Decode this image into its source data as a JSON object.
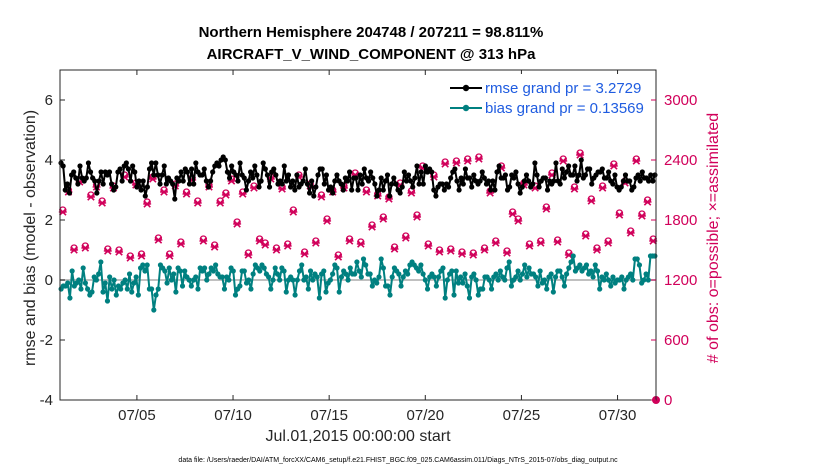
{
  "chart_data": {
    "type": "line",
    "title_line1": "Northern Hemisphere 204748 / 207211 = 98.811%",
    "title_line2": "AIRCRAFT_V_WIND_COMPONENT @ 313 hPa",
    "ylabel_left": "rmse and bias (model - observation)",
    "ylabel_right": "# of obs: o=possible; ×=assimilated",
    "xlabel": "Jul.01,2015 00:00:00 start",
    "footer": "data file: /Users/raeder/DAI/ATM_forcXX/CAM6_setup/f.e21.FHIST_BGC.f09_025.CAM6assim.011/Diags_NTrS_2015-07/obs_diag_output.nc",
    "xlim": [
      1.0,
      32.0
    ],
    "ylim_left": [
      -4,
      7
    ],
    "ylim_right": [
      0,
      3300
    ],
    "xticks": [
      5,
      10,
      15,
      20,
      25,
      30
    ],
    "xtick_labels": [
      "07/05",
      "07/10",
      "07/15",
      "07/20",
      "07/25",
      "07/30"
    ],
    "yticks_left": [
      -4,
      -2,
      0,
      2,
      4,
      6
    ],
    "yticks_right": [
      0,
      600,
      1200,
      1800,
      2400,
      3000
    ],
    "colors": {
      "rmse": "#000000",
      "bias": "#008080",
      "obs": "#d1005a",
      "zero": "#c0c0c0",
      "legend_text": "#1f5ce0"
    },
    "legend": {
      "placement": "top-right",
      "entries": [
        {
          "name": "rmse grand pr = 3.2729",
          "series": "rmse"
        },
        {
          "name": "bias grand pr = 0.13569",
          "series": "bias"
        }
      ]
    },
    "series": [
      {
        "name": "rmse",
        "axis": "left",
        "values": [
          3.9,
          3.8,
          3.0,
          3.2,
          2.9,
          3.5,
          3.6,
          3.4,
          3.2,
          3.8,
          3.4,
          3.3,
          3.4,
          3.9,
          3.6,
          3.4,
          3.3,
          2.9,
          3.3,
          3.6,
          3.2,
          3.6,
          3.5,
          3.6,
          3.2,
          3.0,
          3.1,
          3.6,
          3.7,
          3.3,
          3.8,
          3.9,
          3.7,
          3.3,
          3.8,
          3.6,
          3.1,
          3.3,
          3.0,
          3.3,
          2.8,
          3.1,
          3.7,
          3.9,
          3.5,
          3.9,
          3.5,
          3.2,
          3.5,
          3.8,
          3.2,
          3.4,
          3.3,
          3.2,
          2.7,
          3.4,
          3.3,
          3.6,
          3.3,
          3.7,
          3.6,
          3.2,
          3.7,
          3.2,
          3.9,
          3.6,
          3.5,
          3.5,
          3.7,
          3.3,
          3.1,
          3.3,
          3.6,
          3.8,
          3.9,
          3.8,
          4.0,
          4.1,
          4.0,
          3.6,
          3.4,
          3.8,
          3.6,
          3.5,
          3.3,
          3.9,
          3.5,
          3.4,
          3.0,
          3.3,
          3.6,
          3.4,
          3.8,
          3.5,
          3.1,
          3.3,
          3.9,
          3.7,
          3.5,
          3.1,
          3.6,
          3.7,
          3.5,
          3.2,
          3.3,
          3.2,
          3.8,
          3.3,
          3.5,
          3.1,
          3.3,
          3.0,
          3.5,
          3.1,
          3.2,
          3.3,
          3.7,
          3.2,
          2.9,
          3.3,
          2.8,
          3.1,
          3.5,
          3.7,
          3.7,
          3.2,
          3.5,
          3.0,
          3.1,
          2.9,
          3.3,
          3.5,
          3.3,
          3.2,
          3.0,
          3.4,
          3.3,
          3.6,
          3.0,
          3.4,
          3.4,
          3.0,
          3.5,
          3.2,
          3.7,
          3.4,
          3.3,
          3.6,
          3.4,
          3.2,
          2.8,
          3.0,
          3.4,
          3.0,
          3.3,
          3.5,
          2.8,
          3.2,
          3.4,
          3.2,
          3.0,
          2.9,
          3.1,
          3.6,
          3.3,
          3.5,
          3.3,
          3.1,
          3.4,
          3.8,
          3.2,
          3.6,
          3.2,
          3.8,
          3.6,
          3.7,
          3.6,
          3.0,
          2.8,
          3.1,
          3.2,
          3.2,
          3.0,
          3.2,
          3.1,
          3.4,
          3.6,
          3.7,
          3.3,
          3.0,
          3.4,
          3.2,
          3.7,
          3.4,
          3.4,
          3.1,
          3.5,
          3.3,
          3.2,
          3.3,
          3.6,
          3.4,
          3.2,
          3.3,
          3.0,
          3.3,
          3.0,
          3.6,
          3.8,
          3.4,
          3.4,
          3.5,
          3.0,
          3.1,
          3.5,
          3.4,
          3.6,
          3.2,
          2.9,
          3.1,
          3.3,
          3.5,
          3.3,
          3.1,
          3.2,
          3.9,
          3.5,
          3.1,
          3.3,
          3.4,
          3.4,
          3.0,
          3.3,
          3.2,
          3.3,
          3.9,
          3.3,
          3.2,
          3.7,
          3.4,
          3.6,
          3.8,
          3.5,
          3.5,
          3.8,
          3.3,
          3.5,
          4.0,
          3.4,
          3.5,
          3.7,
          3.7,
          3.2,
          3.4,
          3.5,
          3.6,
          3.6,
          3.7,
          3.4,
          3.4,
          3.6,
          3.3,
          3.2,
          3.5,
          3.1,
          3.0,
          3.1,
          3.3,
          3.5,
          3.3,
          3.3,
          3.0,
          3.1,
          3.4,
          3.5,
          3.3,
          3.6,
          3.4,
          3.4,
          3.3,
          3.5,
          3.3,
          3.5
        ]
      },
      {
        "name": "bias",
        "axis": "left",
        "values": [
          -0.3,
          -0.2,
          -0.2,
          -0.1,
          -0.6,
          0.3,
          -0.2,
          -0.1,
          0.0,
          -0.3,
          0.4,
          -0.1,
          -0.3,
          -0.5,
          -0.4,
          0.1,
          0.0,
          0.2,
          0.6,
          -0.4,
          -0.1,
          -0.7,
          0.1,
          -0.3,
          0.0,
          -0.5,
          -0.2,
          -0.3,
          -0.1,
          0.0,
          -0.3,
          0.2,
          -0.4,
          -0.1,
          0.1,
          -0.5,
          0.4,
          0.5,
          0.3,
          0.5,
          -0.3,
          -0.3,
          -1.0,
          -0.5,
          -0.3,
          0.5,
          0.4,
          0.3,
          -0.1,
          0.4,
          0.0,
          0.2,
          -0.4,
          0.4,
          0.3,
          -0.2,
          0.3,
          0.1,
          0.0,
          -0.2,
          0.0,
          0.1,
          -0.3,
          0.4,
          0.3,
          0.4,
          0.0,
          0.2,
          0.4,
          0.3,
          0.5,
          0.2,
          0.1,
          0.1,
          -0.3,
          0.1,
          0.0,
          0.4,
          0.3,
          -0.5,
          -0.3,
          -0.2,
          0.3,
          0.3,
          -0.1,
          0.0,
          -0.3,
          0.2,
          0.5,
          0.4,
          0.3,
          0.5,
          0.4,
          0.2,
          0.1,
          -0.3,
          0.0,
          0.4,
          0.2,
          0.0,
          0.4,
          0.3,
          -0.4,
          0.0,
          0.1,
          0.0,
          -0.5,
          0.0,
          0.3,
          0.5,
          0.0,
          0.1,
          -0.3,
          0.3,
          0.0,
          0.2,
          0.1,
          -0.6,
          0.2,
          0.3,
          -0.4,
          -0.1,
          0.0,
          0.2,
          0.5,
          0.4,
          -0.4,
          0.1,
          0.3,
          0.2,
          0.0,
          0.4,
          0.2,
          0.2,
          0.6,
          0.3,
          0.1,
          0.7,
          0.5,
          0.2,
          0.2,
          -0.2,
          0.0,
          -0.1,
          0.1,
          0.7,
          0.4,
          -0.2,
          -0.2,
          -0.5,
          0.1,
          0.4,
          0.3,
          0.2,
          -0.2,
          0.1,
          0.3,
          0.2,
          0.5,
          0.6,
          0.5,
          0.4,
          0.3,
          0.5,
          0.2,
          0.0,
          -0.3,
          0.1,
          0.2,
          0.1,
          -0.2,
          0.1,
          0.3,
          0.4,
          -0.6,
          0.0,
          0.2,
          0.3,
          -0.5,
          0.3,
          -0.1,
          0.1,
          -0.1,
          0.2,
          -0.2,
          -0.6,
          0.1,
          0.2,
          0.0,
          -0.5,
          -0.3,
          -0.3,
          0.1,
          0.1,
          0.0,
          -0.3,
          0.1,
          0.2,
          0.0,
          0.3,
          0.1,
          0.0,
          0.4,
          0.6,
          -0.2,
          0.0,
          0.1,
          0.3,
          0.0,
          0.2,
          0.5,
          0.1,
          0.4,
          0.2,
          0.2,
          0.1,
          -0.2,
          0.3,
          -0.1,
          0.0,
          -0.3,
          0.1,
          0.2,
          -0.4,
          0.1,
          0.3,
          0.3,
          0.1,
          -0.2,
          0.2,
          0.4,
          0.6,
          0.8,
          0.3,
          0.4,
          0.5,
          0.3,
          0.4,
          0.5,
          0.2,
          0.3,
          0.1,
          0.5,
          0.3,
          -0.3,
          0.1,
          0.0,
          0.2,
          0.0,
          -0.2,
          0.1,
          -0.1,
          0.0,
          0.0,
          0.1,
          -0.3,
          0.0,
          0.1,
          0.2,
          0.0,
          0.7,
          0.7,
          0.5,
          -0.1,
          0.0,
          0.2,
          0.0,
          0.8,
          0.8,
          0.8
        ]
      },
      {
        "name": "# obs possible",
        "axis": "right",
        "values": [
          1900,
          2100,
          1520,
          2200,
          1540,
          2050,
          2150,
          1990,
          1510,
          2140,
          1500,
          2250,
          1440,
          2170,
          1460,
          1980,
          2230,
          1620,
          2100,
          1460,
          2160,
          1580,
          2080,
          2220,
          1990,
          1610,
          2150,
          1550,
          1990,
          2070,
          2210,
          1780,
          2080,
          1470,
          2140,
          1610,
          1570,
          2230,
          1520,
          2130,
          1560,
          1900,
          2250,
          1480,
          2160,
          1590,
          2050,
          1810,
          2100,
          1450,
          2140,
          1610,
          2270,
          1580,
          2100,
          1750,
          2060,
          1830,
          2030,
          1530,
          2170,
          1640,
          2090,
          1850,
          2340,
          1560,
          2250,
          1500,
          2380,
          1510,
          2390,
          1480,
          2410,
          1470,
          2430,
          1520,
          2090,
          1590,
          2340,
          1490,
          1880,
          1810,
          2170,
          1560,
          2140,
          1590,
          1930,
          2270,
          1600,
          2410,
          1470,
          2130,
          2470,
          1660,
          2010,
          1520,
          2140,
          1590,
          2360,
          1870,
          2190,
          1690,
          2410,
          1860,
          2000,
          1610
        ]
      },
      {
        "name": "# obs assimilated",
        "axis": "right",
        "values": [
          1880,
          2080,
          1500,
          2180,
          1520,
          2030,
          2130,
          1970,
          1490,
          2120,
          1480,
          2230,
          1420,
          2150,
          1440,
          1960,
          2210,
          1600,
          2080,
          1440,
          2140,
          1560,
          2060,
          2200,
          1970,
          1590,
          2130,
          1530,
          1970,
          2050,
          2190,
          1760,
          2060,
          1450,
          2120,
          1590,
          1550,
          2210,
          1500,
          2110,
          1540,
          1880,
          2230,
          1460,
          2140,
          1570,
          2030,
          1790,
          2080,
          1430,
          2120,
          1590,
          2250,
          1560,
          2080,
          1730,
          2040,
          1810,
          2010,
          1510,
          2150,
          1620,
          2070,
          1830,
          2320,
          1540,
          2230,
          1480,
          2360,
          1490,
          2370,
          1460,
          2390,
          1450,
          2410,
          1500,
          2070,
          1570,
          2320,
          1470,
          1860,
          1790,
          2150,
          1540,
          2120,
          1570,
          1910,
          2250,
          1580,
          2390,
          1450,
          2110,
          2450,
          1640,
          1990,
          1500,
          2120,
          1570,
          2340,
          1850,
          2170,
          1670,
          2390,
          1840,
          1980,
          1590
        ]
      }
    ]
  }
}
